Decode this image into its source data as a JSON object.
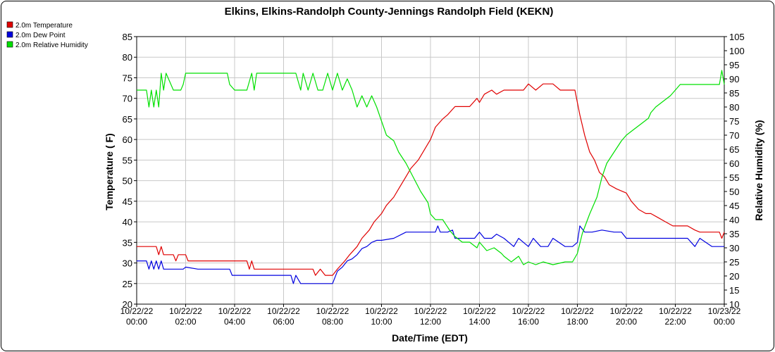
{
  "chart_data": {
    "type": "line",
    "title": "Elkins, Elkins-Randolph County-Jennings Randolph Field (KEKN)",
    "xlabel": "Date/Time (EDT)",
    "ylabel": "Temperature ( F)",
    "y2label": "Relative Humidity (%)",
    "ylim": [
      20,
      85
    ],
    "y2lim": [
      10,
      105
    ],
    "y_ticks": [
      20,
      25,
      30,
      35,
      40,
      45,
      50,
      55,
      60,
      65,
      70,
      75,
      80,
      85
    ],
    "y2_ticks": [
      10,
      15,
      20,
      25,
      30,
      35,
      40,
      45,
      50,
      55,
      60,
      65,
      70,
      75,
      80,
      85,
      90,
      95,
      100,
      105
    ],
    "x_hours": [
      0,
      2,
      4,
      6,
      8,
      10,
      12,
      14,
      16,
      18,
      20,
      22,
      24
    ],
    "x_tick_labels": [
      [
        "10/22/22",
        "00:00"
      ],
      [
        "10/22/22",
        "02:00"
      ],
      [
        "10/22/22",
        "04:00"
      ],
      [
        "10/22/22",
        "06:00"
      ],
      [
        "10/22/22",
        "08:00"
      ],
      [
        "10/22/22",
        "10:00"
      ],
      [
        "10/22/22",
        "12:00"
      ],
      [
        "10/22/22",
        "14:00"
      ],
      [
        "10/22/22",
        "16:00"
      ],
      [
        "10/22/22",
        "18:00"
      ],
      [
        "10/22/22",
        "20:00"
      ],
      [
        "10/22/22",
        "22:00"
      ],
      [
        "10/23/22",
        "00:00"
      ]
    ],
    "grid": true,
    "legend_position": "top-left",
    "series": [
      {
        "name": "2.0m Temperature",
        "axis": "left",
        "color": "#e00000",
        "x": [
          0,
          0.8,
          0.9,
          1.0,
          1.1,
          1.2,
          1.5,
          1.6,
          1.7,
          2.0,
          2.1,
          2.5,
          3.0,
          3.5,
          4.0,
          4.5,
          4.6,
          4.7,
          4.8,
          4.9,
          5.0,
          5.5,
          6.0,
          6.5,
          7.0,
          7.2,
          7.3,
          7.5,
          7.7,
          8.0,
          8.2,
          8.5,
          8.7,
          9.0,
          9.2,
          9.5,
          9.7,
          10.0,
          10.2,
          10.5,
          10.7,
          11.0,
          11.2,
          11.5,
          11.7,
          12.0,
          12.2,
          12.5,
          12.7,
          13.0,
          13.3,
          13.6,
          13.9,
          14.0,
          14.2,
          14.5,
          14.7,
          15.0,
          15.5,
          15.8,
          16.0,
          16.3,
          16.6,
          17.0,
          17.3,
          17.7,
          17.9,
          18.1,
          18.3,
          18.5,
          18.7,
          18.9,
          19.1,
          19.3,
          19.6,
          20.0,
          20.2,
          20.5,
          20.8,
          21.0,
          21.3,
          21.6,
          21.9,
          22.2,
          22.5,
          22.8,
          23.0,
          23.5,
          23.8,
          23.9,
          24.0
        ],
        "values": [
          34,
          34,
          32,
          34,
          32,
          32,
          32,
          30.5,
          32,
          32,
          30.5,
          30.5,
          30.5,
          30.5,
          30.5,
          30.5,
          28.5,
          30.5,
          28.5,
          28.5,
          28.5,
          28.5,
          28.5,
          28.5,
          28.5,
          28.5,
          27,
          28.5,
          27,
          27,
          28.5,
          30.5,
          32,
          34,
          36,
          38,
          40,
          42,
          44,
          46,
          48,
          51,
          53,
          55,
          57,
          60,
          63,
          65,
          66,
          68,
          68,
          68,
          70,
          69,
          71,
          72,
          71,
          72,
          72,
          72,
          73.5,
          72,
          73.5,
          73.5,
          72,
          72,
          72,
          66,
          61,
          57,
          55,
          52,
          51,
          49,
          48,
          47,
          45,
          43,
          42,
          42,
          41,
          40,
          39,
          39,
          39,
          38,
          37.5,
          37.5,
          37.5,
          36,
          37.5
        ]
      },
      {
        "name": "2.0m Dew Point",
        "axis": "left",
        "color": "#0000e0",
        "x": [
          0,
          0.4,
          0.5,
          0.6,
          0.7,
          0.8,
          0.9,
          1.0,
          1.1,
          1.5,
          1.9,
          2.0,
          2.5,
          3.0,
          3.5,
          3.8,
          3.9,
          4.5,
          5.0,
          5.5,
          6.0,
          6.3,
          6.4,
          6.5,
          6.6,
          6.7,
          7.0,
          7.5,
          8.0,
          8.2,
          8.4,
          8.6,
          8.8,
          9.0,
          9.2,
          9.4,
          9.6,
          9.8,
          10.0,
          10.5,
          11.0,
          11.5,
          12.0,
          12.2,
          12.3,
          12.4,
          12.5,
          12.7,
          12.9,
          13.0,
          13.3,
          13.6,
          13.8,
          14.0,
          14.2,
          14.5,
          14.7,
          15.0,
          15.2,
          15.4,
          15.6,
          15.8,
          16.0,
          16.2,
          16.5,
          16.8,
          17.0,
          17.5,
          17.8,
          18.0,
          18.1,
          18.3,
          18.6,
          19.0,
          19.5,
          19.8,
          20.0,
          20.5,
          21.0,
          21.5,
          22.0,
          22.5,
          22.8,
          23.0,
          23.5,
          23.8,
          23.9,
          24.0
        ],
        "values": [
          30.5,
          30.5,
          28.5,
          30.5,
          28.5,
          30.5,
          28.5,
          30.5,
          28.5,
          28.5,
          28.5,
          29,
          28.5,
          28.5,
          28.5,
          28.5,
          27,
          27,
          27,
          27,
          27,
          27,
          25,
          27,
          26,
          25,
          25,
          25,
          25,
          28,
          29,
          30.5,
          31,
          32,
          33.5,
          34,
          35,
          35.5,
          35.5,
          36,
          37.5,
          37.5,
          37.5,
          37.5,
          39,
          37.5,
          37.5,
          37.5,
          38,
          36,
          36,
          36,
          36,
          37.5,
          36,
          36,
          37,
          36,
          35,
          34,
          36,
          35,
          34,
          36,
          34,
          34,
          36,
          34,
          34,
          35,
          39,
          37.5,
          37.5,
          38,
          37.5,
          37.5,
          36,
          36,
          36,
          36,
          36,
          36,
          34,
          36,
          34,
          34,
          34,
          34
        ]
      },
      {
        "name": "2.0m Relative Humidity",
        "axis": "right",
        "color": "#00e000",
        "x": [
          0,
          0.4,
          0.5,
          0.6,
          0.7,
          0.8,
          0.9,
          1.0,
          1.1,
          1.2,
          1.5,
          1.8,
          1.9,
          2.0,
          2.5,
          3.0,
          3.5,
          3.7,
          3.8,
          4.0,
          4.5,
          4.7,
          4.8,
          4.9,
          5.0,
          5.5,
          6.0,
          6.5,
          6.7,
          6.8,
          7.0,
          7.2,
          7.4,
          7.6,
          7.8,
          8.0,
          8.2,
          8.4,
          8.6,
          8.8,
          9.0,
          9.2,
          9.4,
          9.6,
          9.8,
          10.0,
          10.2,
          10.5,
          10.7,
          11.0,
          11.3,
          11.6,
          11.9,
          12.0,
          12.2,
          12.5,
          12.8,
          13.0,
          13.3,
          13.6,
          13.9,
          14.0,
          14.3,
          14.6,
          14.9,
          15.0,
          15.3,
          15.6,
          15.8,
          16.0,
          16.3,
          16.6,
          17.0,
          17.5,
          17.8,
          18.0,
          18.2,
          18.5,
          18.8,
          19.0,
          19.2,
          19.5,
          19.8,
          20.0,
          20.3,
          20.6,
          20.9,
          21.0,
          21.2,
          21.5,
          21.8,
          22.0,
          22.2,
          22.5,
          22.8,
          23.0,
          23.5,
          23.8,
          23.9,
          24.0
        ],
        "values": [
          86,
          86,
          80,
          86,
          80,
          86,
          80,
          92,
          86,
          92,
          86,
          86,
          88,
          92,
          92,
          92,
          92,
          92,
          88,
          86,
          86,
          92,
          86,
          92,
          92,
          92,
          92,
          92,
          86,
          92,
          86,
          92,
          86,
          86,
          92,
          86,
          92,
          86,
          90,
          86,
          80,
          84,
          80,
          84,
          80,
          75,
          70,
          68,
          64,
          60,
          55,
          50,
          46,
          42,
          40,
          40,
          36,
          34,
          32,
          32,
          30,
          32,
          29,
          30,
          28,
          27,
          25,
          27,
          24,
          25,
          24,
          25,
          24,
          25,
          25,
          28,
          35,
          42,
          48,
          55,
          60,
          64,
          68,
          70,
          72,
          74,
          76,
          78,
          80,
          82,
          84,
          86,
          88,
          88,
          88,
          88,
          88,
          88,
          93,
          88
        ]
      }
    ]
  }
}
